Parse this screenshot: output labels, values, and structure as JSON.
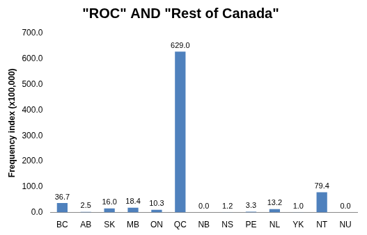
{
  "chart_data": {
    "type": "bar",
    "title": "\"ROC\" AND \"Rest of Canada\"",
    "y_label": "Frequency index (x100,000)",
    "categories": [
      "BC",
      "AB",
      "SK",
      "MB",
      "ON",
      "QC",
      "NB",
      "NS",
      "PE",
      "NL",
      "YK",
      "NT",
      "NU"
    ],
    "values": [
      36.7,
      2.5,
      16.0,
      18.4,
      10.3,
      629.0,
      0.0,
      1.2,
      3.3,
      13.2,
      1.0,
      79.4,
      0.0
    ],
    "value_labels": [
      "36.7",
      "2.5",
      "16.0",
      "18.4",
      "10.3",
      "629.0",
      "0.0",
      "1.2",
      "3.3",
      "13.2",
      "1.0",
      "79.4",
      "0.0"
    ],
    "color": "#4f81bd",
    "ylim": [
      0,
      700
    ],
    "yticks": [
      {
        "value": 0,
        "label": "0.0"
      },
      {
        "value": 100,
        "label": "100.0"
      },
      {
        "value": 200,
        "label": "200.0"
      },
      {
        "value": 300,
        "label": "300.0"
      },
      {
        "value": 400,
        "label": "400.0"
      },
      {
        "value": 500,
        "label": "500.0"
      },
      {
        "value": 600,
        "label": "600.0"
      },
      {
        "value": 700,
        "label": "700.0"
      }
    ],
    "grid": false,
    "data_labels": true
  }
}
